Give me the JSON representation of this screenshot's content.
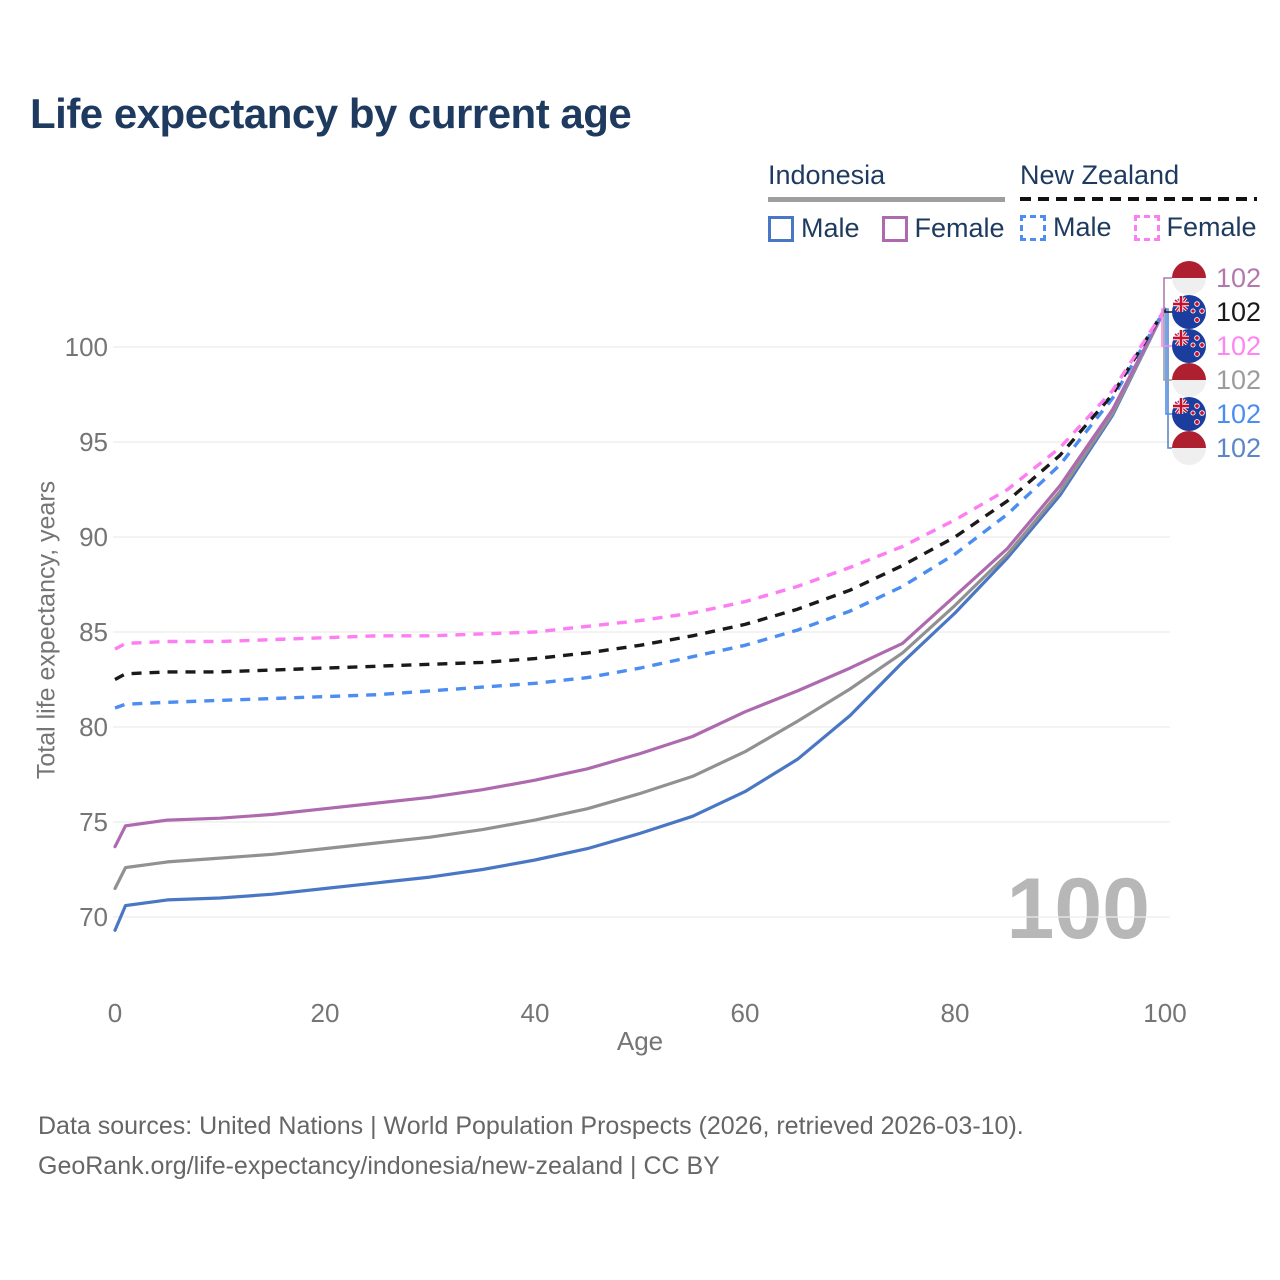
{
  "title": "Life expectancy by current age",
  "legend": {
    "groups": [
      {
        "name": "Indonesia",
        "line_style": "solid",
        "underline_color": "#9e9e9e",
        "items": [
          {
            "label": "Male",
            "color": "#4a77c4"
          },
          {
            "label": "Female",
            "color": "#ae6aae"
          }
        ]
      },
      {
        "name": "New Zealand",
        "line_style": "dashed",
        "underline_color": "#111111",
        "items": [
          {
            "label": "Male",
            "color": "#4c8df2"
          },
          {
            "label": "Female",
            "color": "#fd7ef2"
          }
        ]
      }
    ]
  },
  "end_labels": [
    {
      "value": "102",
      "color": "#b379ae",
      "flag": "indonesia",
      "series": "Indonesia Female"
    },
    {
      "value": "102",
      "color": "#1a1a1a",
      "flag": "new-zealand",
      "series": "New Zealand"
    },
    {
      "value": "102",
      "color": "#ff85f2",
      "flag": "new-zealand",
      "series": "New Zealand Female"
    },
    {
      "value": "102",
      "color": "#9c9c9c",
      "flag": "indonesia",
      "series": "Indonesia"
    },
    {
      "value": "102",
      "color": "#4c8df2",
      "flag": "new-zealand",
      "series": "New Zealand Male"
    },
    {
      "value": "102",
      "color": "#5d86c9",
      "flag": "indonesia",
      "series": "Indonesia Male"
    }
  ],
  "watermark": "100",
  "footer": {
    "line1": "Data sources: United Nations | World Population Prospects (2026, retrieved 2026-03-10).",
    "line2": "GeoRank.org/life-expectancy/indonesia/new-zealand | CC BY"
  },
  "colors": {
    "title": "#1e3a5f",
    "grid": "#ececec",
    "axis_text": "#757575",
    "watermark": "#b7b7b7"
  },
  "chart_data": {
    "type": "line",
    "title": "Life expectancy by current age",
    "xlabel": "Age",
    "ylabel": "Total life expectancy, years",
    "xlim": [
      0,
      100
    ],
    "ylim": [
      68,
      103
    ],
    "xticks": [
      0,
      20,
      40,
      60,
      80,
      100
    ],
    "yticks": [
      70,
      75,
      80,
      85,
      90,
      95,
      100
    ],
    "grid": "horizontal",
    "legend_position": "top-right",
    "x": [
      0,
      1,
      5,
      10,
      15,
      20,
      25,
      30,
      35,
      40,
      45,
      50,
      55,
      60,
      65,
      70,
      75,
      80,
      85,
      90,
      95,
      100
    ],
    "series": [
      {
        "name": "Indonesia Male",
        "country": "Indonesia",
        "sex": "male",
        "color": "#4a77c4",
        "dash": "solid",
        "values": [
          69.3,
          70.6,
          70.9,
          71.0,
          71.2,
          71.5,
          71.8,
          72.1,
          72.5,
          73.0,
          73.6,
          74.4,
          75.3,
          76.6,
          78.3,
          80.6,
          83.4,
          86.0,
          88.9,
          92.2,
          96.4,
          102
        ]
      },
      {
        "name": "Indonesia",
        "country": "Indonesia",
        "sex": "both",
        "color": "#919191",
        "dash": "solid",
        "values": [
          71.5,
          72.6,
          72.9,
          73.1,
          73.3,
          73.6,
          73.9,
          74.2,
          74.6,
          75.1,
          75.7,
          76.5,
          77.4,
          78.7,
          80.3,
          82.0,
          83.9,
          86.4,
          89.1,
          92.4,
          96.5,
          102
        ]
      },
      {
        "name": "Indonesia Female",
        "country": "Indonesia",
        "sex": "female",
        "color": "#ae6aae",
        "dash": "solid",
        "values": [
          73.7,
          74.8,
          75.1,
          75.2,
          75.4,
          75.7,
          76.0,
          76.3,
          76.7,
          77.2,
          77.8,
          78.6,
          79.5,
          80.8,
          81.9,
          83.1,
          84.4,
          86.9,
          89.4,
          92.7,
          96.7,
          102
        ]
      },
      {
        "name": "New Zealand Male",
        "country": "New Zealand",
        "sex": "male",
        "color": "#4c8df2",
        "dash": "dashed",
        "values": [
          81.0,
          81.2,
          81.3,
          81.4,
          81.5,
          81.6,
          81.7,
          81.9,
          82.1,
          82.3,
          82.6,
          83.1,
          83.7,
          84.3,
          85.1,
          86.1,
          87.4,
          89.1,
          91.2,
          93.8,
          97.3,
          102
        ]
      },
      {
        "name": "New Zealand",
        "country": "New Zealand",
        "sex": "both",
        "color": "#1a1a1a",
        "dash": "dashed",
        "values": [
          82.5,
          82.8,
          82.9,
          82.9,
          83.0,
          83.1,
          83.2,
          83.3,
          83.4,
          83.6,
          83.9,
          84.3,
          84.8,
          85.4,
          86.2,
          87.2,
          88.5,
          90.0,
          91.9,
          94.3,
          97.5,
          102
        ]
      },
      {
        "name": "New Zealand Female",
        "country": "New Zealand",
        "sex": "female",
        "color": "#fd7ef2",
        "dash": "dashed",
        "values": [
          84.1,
          84.4,
          84.5,
          84.5,
          84.6,
          84.7,
          84.8,
          84.8,
          84.9,
          85.0,
          85.3,
          85.6,
          86.0,
          86.6,
          87.4,
          88.4,
          89.5,
          90.9,
          92.5,
          94.7,
          97.7,
          102
        ]
      }
    ],
    "end_value": 102,
    "end_age": 100
  }
}
